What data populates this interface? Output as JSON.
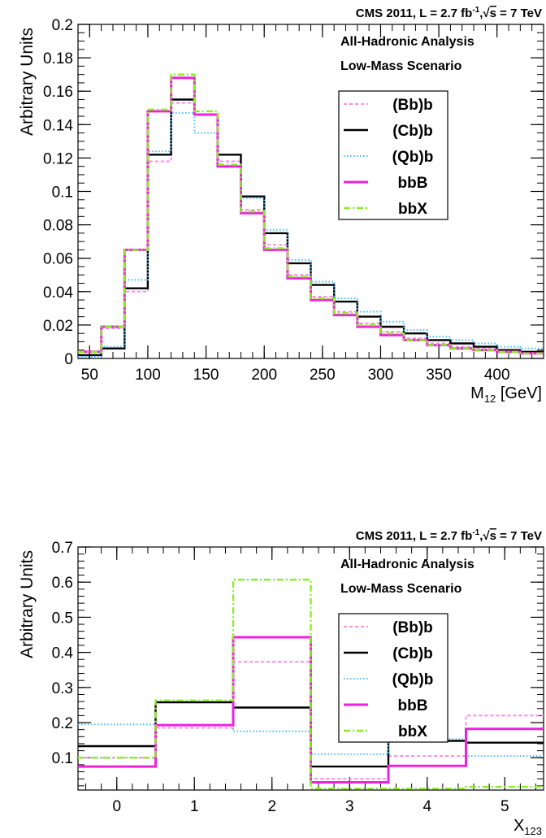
{
  "panels": [
    {
      "header": "CMS 2011, L = 2.7  fb",
      "header_sup": "-1",
      "header_tail": "= 7 TeV",
      "header_sqrt": "s",
      "annotations": [
        "All-Hadronic Analysis",
        "Low-Mass Scenario"
      ],
      "ylabel": "Arbitrary Units",
      "xlabel_main": "M",
      "xlabel_sub": "12",
      "xlabel_tail": " [GeV]",
      "xticks": [
        "50",
        "100",
        "150",
        "200",
        "250",
        "300",
        "350",
        "400"
      ],
      "yticks": [
        "0",
        "0.02",
        "0.04",
        "0.06",
        "0.08",
        "0.1",
        "0.12",
        "0.14",
        "0.16",
        "0.18",
        "0.2"
      ]
    },
    {
      "header": "CMS 2011, L = 2.7  fb",
      "header_sup": "-1",
      "header_tail": "= 7 TeV",
      "header_sqrt": "s",
      "annotations": [
        "All-Hadronic Analysis",
        "Low-Mass Scenario"
      ],
      "ylabel": "Arbitrary Units",
      "xlabel_main": "X",
      "xlabel_sub": "123",
      "xlabel_tail": "",
      "xticks": [
        "0",
        "1",
        "2",
        "3",
        "4",
        "5"
      ],
      "yticks": [
        "0.1",
        "0.2",
        "0.3",
        "0.4",
        "0.5",
        "0.6",
        "0.7"
      ]
    }
  ],
  "series_styles": [
    {
      "name": "(Bb)b",
      "color": "#ff88ee",
      "dash": "4,3",
      "width": 2
    },
    {
      "name": "(Cb)b",
      "color": "#000000",
      "dash": "",
      "width": 2.4
    },
    {
      "name": "(Qb)b",
      "color": "#44bbff",
      "dash": "1.5,2.5",
      "width": 2
    },
    {
      "name": "bbB",
      "color": "#ee22dd",
      "dash": "",
      "width": 3
    },
    {
      "name": "bbX",
      "color": "#88ee22",
      "dash": "8,3,2,3",
      "width": 2.4
    }
  ],
  "chart_data": [
    {
      "type": "line",
      "step": true,
      "xlabel": "M12 [GeV]",
      "ylabel": "Arbitrary Units",
      "xlim": [
        40,
        440
      ],
      "ylim": [
        0,
        0.2
      ],
      "bin_edges": [
        40,
        60,
        80,
        100,
        120,
        140,
        160,
        180,
        200,
        220,
        240,
        260,
        280,
        300,
        320,
        340,
        360,
        380,
        400,
        420,
        440
      ],
      "series": [
        {
          "name": "(Bb)b",
          "values": [
            0.004,
            0.018,
            0.04,
            0.118,
            0.153,
            0.146,
            0.118,
            0.089,
            0.068,
            0.05,
            0.037,
            0.028,
            0.021,
            0.016,
            0.012,
            0.009,
            0.007,
            0.006,
            0.005,
            0.004
          ]
        },
        {
          "name": "(Cb)b",
          "values": [
            0.002,
            0.006,
            0.042,
            0.122,
            0.155,
            0.146,
            0.122,
            0.097,
            0.075,
            0.057,
            0.044,
            0.034,
            0.025,
            0.019,
            0.015,
            0.011,
            0.009,
            0.007,
            0.005,
            0.004
          ]
        },
        {
          "name": "(Qb)b",
          "values": [
            0.001,
            0.007,
            0.047,
            0.124,
            0.147,
            0.135,
            0.115,
            0.096,
            0.077,
            0.059,
            0.046,
            0.036,
            0.028,
            0.022,
            0.017,
            0.013,
            0.011,
            0.009,
            0.007,
            0.006
          ]
        },
        {
          "name": "bbB",
          "values": [
            0.004,
            0.019,
            0.065,
            0.148,
            0.168,
            0.146,
            0.115,
            0.087,
            0.065,
            0.048,
            0.035,
            0.026,
            0.019,
            0.014,
            0.011,
            0.008,
            0.006,
            0.005,
            0.004,
            0.003
          ]
        },
        {
          "name": "bbX",
          "values": [
            0.004,
            0.019,
            0.065,
            0.149,
            0.17,
            0.148,
            0.116,
            0.088,
            0.066,
            0.049,
            0.036,
            0.027,
            0.02,
            0.015,
            0.011,
            0.008,
            0.006,
            0.005,
            0.004,
            0.003
          ]
        }
      ]
    },
    {
      "type": "line",
      "step": true,
      "xlabel": "X123",
      "ylabel": "Arbitrary Units",
      "xlim": [
        -0.5,
        5.5
      ],
      "ylim": [
        0.008,
        0.7
      ],
      "bin_edges": [
        -0.5,
        0.5,
        1.5,
        2.5,
        3.5,
        4.5,
        5.5
      ],
      "series": [
        {
          "name": "(Bb)b",
          "values": [
            0.1,
            0.185,
            0.373,
            0.04,
            0.105,
            0.22
          ]
        },
        {
          "name": "(Cb)b",
          "values": [
            0.133,
            0.258,
            0.243,
            0.075,
            0.148,
            0.143
          ]
        },
        {
          "name": "(Qb)b",
          "values": [
            0.195,
            0.193,
            0.175,
            0.11,
            0.153,
            0.105
          ]
        },
        {
          "name": "bbB",
          "values": [
            0.075,
            0.193,
            0.443,
            0.03,
            0.077,
            0.182
          ]
        },
        {
          "name": "bbX",
          "values": [
            0.1,
            0.263,
            0.607,
            0.012,
            0.012,
            0.017
          ]
        }
      ]
    }
  ]
}
